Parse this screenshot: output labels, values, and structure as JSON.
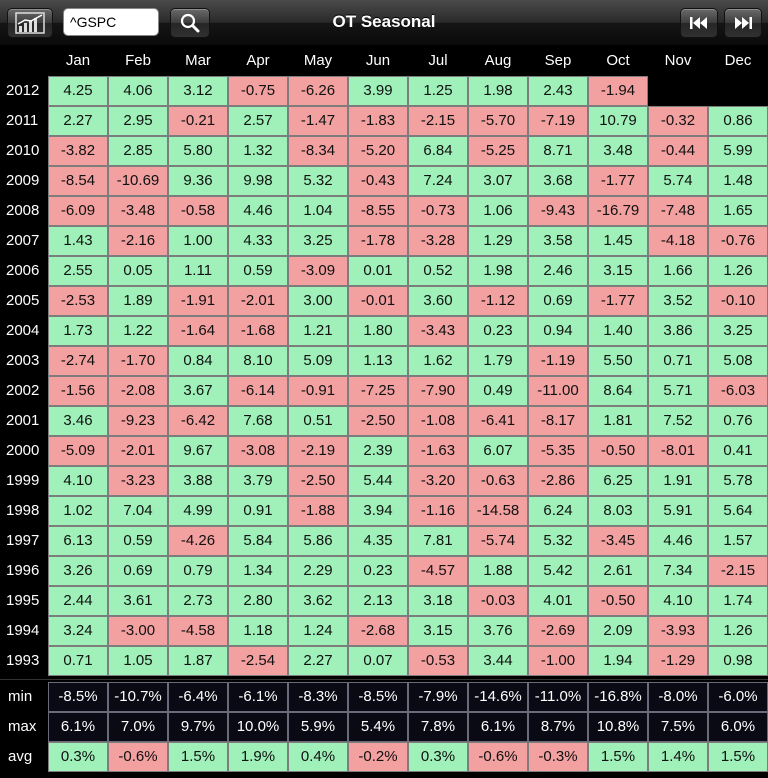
{
  "toolbar": {
    "chart_button_icon": "chart-icon",
    "symbol_value": "^GSPC",
    "search_icon": "search-icon",
    "title": "OT Seasonal",
    "first_icon": "skip-first-icon",
    "last_icon": "skip-last-icon"
  },
  "colors": {
    "positive": "#9ff0b9",
    "negative": "#f2a0a0"
  },
  "months": [
    "Jan",
    "Feb",
    "Mar",
    "Apr",
    "May",
    "Jun",
    "Jul",
    "Aug",
    "Sep",
    "Oct",
    "Nov",
    "Dec"
  ],
  "rows": [
    {
      "year": "2012",
      "values": [
        "4.25",
        "4.06",
        "3.12",
        "-0.75",
        "-6.26",
        "3.99",
        "1.25",
        "1.98",
        "2.43",
        "-1.94",
        "",
        ""
      ]
    },
    {
      "year": "2011",
      "values": [
        "2.27",
        "2.95",
        "-0.21",
        "2.57",
        "-1.47",
        "-1.83",
        "-2.15",
        "-5.70",
        "-7.19",
        "10.79",
        "-0.32",
        "0.86"
      ]
    },
    {
      "year": "2010",
      "values": [
        "-3.82",
        "2.85",
        "5.80",
        "1.32",
        "-8.34",
        "-5.20",
        "6.84",
        "-5.25",
        "8.71",
        "3.48",
        "-0.44",
        "5.99"
      ]
    },
    {
      "year": "2009",
      "values": [
        "-8.54",
        "-10.69",
        "9.36",
        "9.98",
        "5.32",
        "-0.43",
        "7.24",
        "3.07",
        "3.68",
        "-1.77",
        "5.74",
        "1.48"
      ]
    },
    {
      "year": "2008",
      "values": [
        "-6.09",
        "-3.48",
        "-0.58",
        "4.46",
        "1.04",
        "-8.55",
        "-0.73",
        "1.06",
        "-9.43",
        "-16.79",
        "-7.48",
        "1.65"
      ]
    },
    {
      "year": "2007",
      "values": [
        "1.43",
        "-2.16",
        "1.00",
        "4.33",
        "3.25",
        "-1.78",
        "-3.28",
        "1.29",
        "3.58",
        "1.45",
        "-4.18",
        "-0.76"
      ]
    },
    {
      "year": "2006",
      "values": [
        "2.55",
        "0.05",
        "1.11",
        "0.59",
        "-3.09",
        "0.01",
        "0.52",
        "1.98",
        "2.46",
        "3.15",
        "1.66",
        "1.26"
      ]
    },
    {
      "year": "2005",
      "values": [
        "-2.53",
        "1.89",
        "-1.91",
        "-2.01",
        "3.00",
        "-0.01",
        "3.60",
        "-1.12",
        "0.69",
        "-1.77",
        "3.52",
        "-0.10"
      ]
    },
    {
      "year": "2004",
      "values": [
        "1.73",
        "1.22",
        "-1.64",
        "-1.68",
        "1.21",
        "1.80",
        "-3.43",
        "0.23",
        "0.94",
        "1.40",
        "3.86",
        "3.25"
      ]
    },
    {
      "year": "2003",
      "values": [
        "-2.74",
        "-1.70",
        "0.84",
        "8.10",
        "5.09",
        "1.13",
        "1.62",
        "1.79",
        "-1.19",
        "5.50",
        "0.71",
        "5.08"
      ]
    },
    {
      "year": "2002",
      "values": [
        "-1.56",
        "-2.08",
        "3.67",
        "-6.14",
        "-0.91",
        "-7.25",
        "-7.90",
        "0.49",
        "-11.00",
        "8.64",
        "5.71",
        "-6.03"
      ]
    },
    {
      "year": "2001",
      "values": [
        "3.46",
        "-9.23",
        "-6.42",
        "7.68",
        "0.51",
        "-2.50",
        "-1.08",
        "-6.41",
        "-8.17",
        "1.81",
        "7.52",
        "0.76"
      ]
    },
    {
      "year": "2000",
      "values": [
        "-5.09",
        "-2.01",
        "9.67",
        "-3.08",
        "-2.19",
        "2.39",
        "-1.63",
        "6.07",
        "-5.35",
        "-0.50",
        "-8.01",
        "0.41"
      ]
    },
    {
      "year": "1999",
      "values": [
        "4.10",
        "-3.23",
        "3.88",
        "3.79",
        "-2.50",
        "5.44",
        "-3.20",
        "-0.63",
        "-2.86",
        "6.25",
        "1.91",
        "5.78"
      ]
    },
    {
      "year": "1998",
      "values": [
        "1.02",
        "7.04",
        "4.99",
        "0.91",
        "-1.88",
        "3.94",
        "-1.16",
        "-14.58",
        "6.24",
        "8.03",
        "5.91",
        "5.64"
      ]
    },
    {
      "year": "1997",
      "values": [
        "6.13",
        "0.59",
        "-4.26",
        "5.84",
        "5.86",
        "4.35",
        "7.81",
        "-5.74",
        "5.32",
        "-3.45",
        "4.46",
        "1.57"
      ]
    },
    {
      "year": "1996",
      "values": [
        "3.26",
        "0.69",
        "0.79",
        "1.34",
        "2.29",
        "0.23",
        "-4.57",
        "1.88",
        "5.42",
        "2.61",
        "7.34",
        "-2.15"
      ]
    },
    {
      "year": "1995",
      "values": [
        "2.44",
        "3.61",
        "2.73",
        "2.80",
        "3.62",
        "2.13",
        "3.18",
        "-0.03",
        "4.01",
        "-0.50",
        "4.10",
        "1.74"
      ]
    },
    {
      "year": "1994",
      "values": [
        "3.24",
        "-3.00",
        "-4.58",
        "1.18",
        "1.24",
        "-2.68",
        "3.15",
        "3.76",
        "-2.69",
        "2.09",
        "-3.93",
        "1.26"
      ]
    },
    {
      "year": "1993",
      "values": [
        "0.71",
        "1.05",
        "1.87",
        "-2.54",
        "2.27",
        "0.07",
        "-0.53",
        "3.44",
        "-1.00",
        "1.94",
        "-1.29",
        "0.98"
      ]
    }
  ],
  "stats": [
    {
      "label": "min",
      "style": "dark",
      "values": [
        "-8.5%",
        "-10.7%",
        "-6.4%",
        "-6.1%",
        "-8.3%",
        "-8.5%",
        "-7.9%",
        "-14.6%",
        "-11.0%",
        "-16.8%",
        "-8.0%",
        "-6.0%"
      ]
    },
    {
      "label": "max",
      "style": "dark",
      "values": [
        "6.1%",
        "7.0%",
        "9.7%",
        "10.0%",
        "5.9%",
        "5.4%",
        "7.8%",
        "6.1%",
        "8.7%",
        "10.8%",
        "7.5%",
        "6.0%"
      ]
    },
    {
      "label": "avg",
      "style": "color",
      "values": [
        "0.3%",
        "-0.6%",
        "1.5%",
        "1.9%",
        "0.4%",
        "-0.2%",
        "0.3%",
        "-0.6%",
        "-0.3%",
        "1.5%",
        "1.4%",
        "1.5%"
      ]
    }
  ]
}
